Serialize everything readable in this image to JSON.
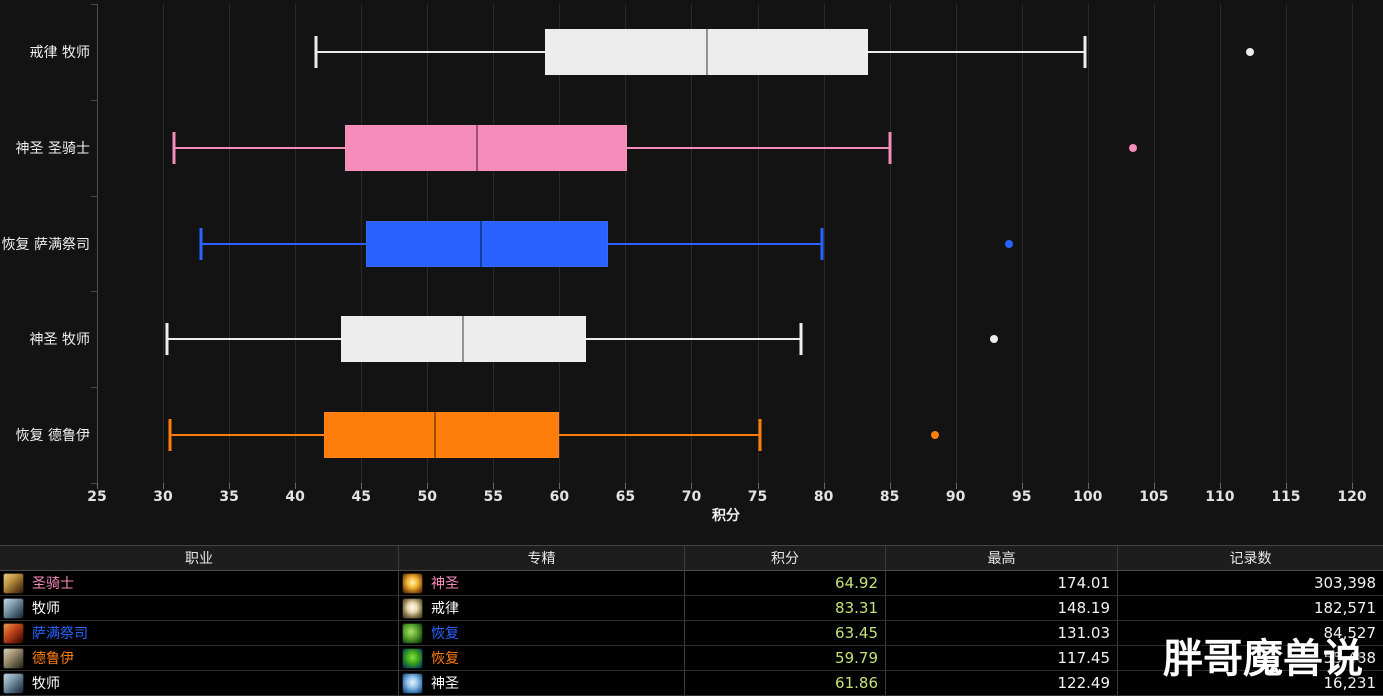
{
  "chart_data": {
    "type": "boxplot",
    "orientation": "horizontal",
    "xlabel": "积分",
    "x_axis": {
      "min": 25,
      "max": 120,
      "tick_step": 5,
      "ticks": [
        25,
        30,
        35,
        40,
        45,
        50,
        55,
        60,
        65,
        70,
        75,
        80,
        85,
        90,
        95,
        100,
        105,
        110,
        115,
        120
      ]
    },
    "grid": true,
    "series": [
      {
        "label": "戒律 牧师",
        "color": "#ededed",
        "decal": true,
        "min": 41.6,
        "q1": 58.9,
        "median": 71.2,
        "q3": 83.4,
        "max": 99.8,
        "outliers": [
          112.3
        ]
      },
      {
        "label": "神圣 圣骑士",
        "color": "#F58CBA",
        "decal": false,
        "min": 30.8,
        "q1": 43.8,
        "median": 53.8,
        "q3": 65.1,
        "max": 85.0,
        "outliers": [
          103.4
        ]
      },
      {
        "label": "恢复 萨满祭司",
        "color": "#2962FF",
        "decal": false,
        "min": 32.9,
        "q1": 45.4,
        "median": 54.1,
        "q3": 63.7,
        "max": 79.9,
        "outliers": [
          94.0
        ]
      },
      {
        "label": "神圣 牧师",
        "color": "#ededed",
        "decal": true,
        "min": 30.3,
        "q1": 43.5,
        "median": 52.7,
        "q3": 62.0,
        "max": 78.3,
        "outliers": [
          92.9
        ]
      },
      {
        "label": "恢复 德鲁伊",
        "color": "#FF7D0A",
        "decal": false,
        "min": 30.5,
        "q1": 42.2,
        "median": 50.6,
        "q3": 60.0,
        "max": 75.2,
        "outliers": [
          88.4
        ]
      }
    ]
  },
  "table": {
    "columns": [
      "职业",
      "专精",
      "积分",
      "最高",
      "记录数"
    ],
    "score_color": "#C5E17A",
    "rows": [
      {
        "class": "圣骑士",
        "class_color": "#F58CBA",
        "class_icon": "paladin-class-icon",
        "spec": "神圣",
        "spec_icon": "holy-paladin-spec-icon",
        "score": "64.92",
        "highest": "174.01",
        "records": "303,398"
      },
      {
        "class": "牧师",
        "class_color": "#FFFFFF",
        "class_icon": "priest-class-icon",
        "spec": "戒律",
        "spec_icon": "discipline-priest-spec-icon",
        "score": "83.31",
        "highest": "148.19",
        "records": "182,571"
      },
      {
        "class": "萨满祭司",
        "class_color": "#2962FF",
        "class_icon": "shaman-class-icon",
        "spec": "恢复",
        "spec_icon": "restoration-shaman-spec-icon",
        "score": "63.45",
        "highest": "131.03",
        "records": "84,527"
      },
      {
        "class": "德鲁伊",
        "class_color": "#FF7D0A",
        "class_icon": "druid-class-icon",
        "spec": "恢复",
        "spec_icon": "restoration-druid-spec-icon",
        "score": "59.79",
        "highest": "117.45",
        "records": "55,488"
      },
      {
        "class": "牧师",
        "class_color": "#FFFFFF",
        "class_icon": "priest-class-icon",
        "spec": "神圣",
        "spec_icon": "holy-priest-spec-icon",
        "score": "61.86",
        "highest": "122.49",
        "records": "16,231"
      }
    ]
  },
  "watermark": {
    "text": "胖哥魔兽说"
  }
}
